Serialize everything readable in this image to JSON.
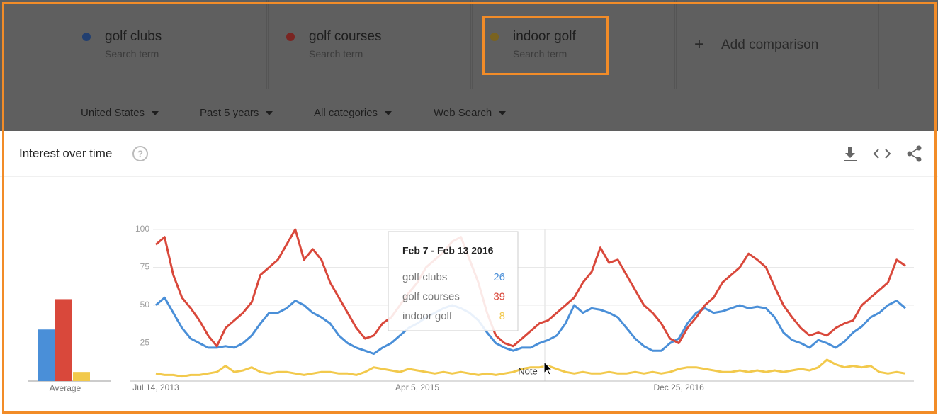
{
  "header": {
    "terms": [
      {
        "label": "golf clubs",
        "sub": "Search term"
      },
      {
        "label": "golf courses",
        "sub": "Search term"
      },
      {
        "label": "indoor golf",
        "sub": "Search term"
      }
    ],
    "add": "Add comparison",
    "filters": [
      "United States",
      "Past 5 years",
      "All categories",
      "Web Search"
    ]
  },
  "panel": {
    "title": "Interest over time"
  },
  "chart_data": {
    "type": "line",
    "categories": [
      "Jul 14, 2013",
      null,
      null,
      null,
      null,
      null,
      null,
      null,
      null,
      null,
      null,
      null,
      null,
      null,
      null,
      null,
      null,
      null,
      null,
      null,
      null,
      null,
      null,
      null,
      null,
      null,
      null,
      null,
      null,
      null,
      "Apr 5, 2015",
      null,
      null,
      null,
      null,
      null,
      null,
      null,
      null,
      null,
      null,
      null,
      null,
      null,
      null,
      null,
      null,
      null,
      null,
      null,
      null,
      null,
      null,
      null,
      null,
      null,
      null,
      null,
      null,
      null,
      "Dec 25, 2016",
      null,
      null,
      null,
      null,
      null,
      null,
      null,
      null,
      null,
      null,
      null,
      null,
      null,
      null,
      null,
      null,
      null,
      null,
      null,
      null,
      null,
      null,
      null,
      null,
      null,
      null
    ],
    "series": [
      {
        "name": "golf clubs",
        "color": "#4a8fd8",
        "values": [
          50,
          55,
          45,
          35,
          28,
          25,
          22,
          22,
          23,
          22,
          25,
          30,
          38,
          45,
          45,
          48,
          53,
          50,
          45,
          42,
          38,
          30,
          25,
          22,
          20,
          18,
          22,
          25,
          30,
          35,
          38,
          42,
          45,
          48,
          50,
          48,
          45,
          40,
          32,
          25,
          22,
          20,
          22,
          22,
          25,
          27,
          30,
          38,
          50,
          45,
          48,
          47,
          45,
          42,
          35,
          28,
          23,
          20,
          20,
          25,
          28,
          38,
          45,
          48,
          45,
          46,
          48,
          50,
          48,
          49,
          48,
          42,
          32,
          27,
          25,
          22,
          27,
          25,
          22,
          26,
          32,
          36,
          42,
          45,
          50,
          53,
          48
        ]
      },
      {
        "name": "golf courses",
        "color": "#d9483b",
        "values": [
          90,
          95,
          70,
          55,
          48,
          40,
          30,
          23,
          35,
          40,
          45,
          52,
          70,
          75,
          80,
          90,
          100,
          80,
          87,
          80,
          65,
          55,
          45,
          35,
          28,
          30,
          38,
          42,
          50,
          58,
          65,
          75,
          80,
          85,
          92,
          95,
          80,
          65,
          45,
          30,
          25,
          23,
          28,
          33,
          38,
          40,
          45,
          50,
          55,
          65,
          72,
          88,
          78,
          80,
          70,
          60,
          50,
          45,
          38,
          28,
          25,
          35,
          42,
          50,
          55,
          65,
          70,
          75,
          84,
          80,
          75,
          62,
          50,
          42,
          35,
          30,
          32,
          30,
          35,
          38,
          40,
          50,
          55,
          60,
          65,
          80,
          76
        ]
      },
      {
        "name": "indoor golf",
        "color": "#f2c94c",
        "values": [
          5,
          4,
          4,
          3,
          4,
          4,
          5,
          6,
          10,
          6,
          7,
          9,
          6,
          5,
          6,
          6,
          5,
          4,
          5,
          6,
          6,
          5,
          5,
          4,
          6,
          9,
          8,
          7,
          6,
          8,
          7,
          6,
          5,
          6,
          5,
          6,
          5,
          4,
          5,
          4,
          5,
          6,
          8,
          9,
          9,
          10,
          8,
          6,
          5,
          6,
          5,
          5,
          6,
          5,
          5,
          6,
          5,
          6,
          5,
          6,
          8,
          9,
          9,
          8,
          7,
          6,
          6,
          7,
          6,
          7,
          6,
          7,
          6,
          7,
          8,
          7,
          9,
          14,
          11,
          9,
          10,
          9,
          10,
          6,
          5,
          6,
          5
        ]
      }
    ],
    "ylim": [
      0,
      100
    ],
    "yticks": [
      25,
      50,
      75,
      100
    ],
    "grid": true,
    "average": {
      "label": "Average",
      "values": [
        34,
        54,
        6
      ]
    },
    "tooltip": {
      "title": "Feb 7 - Feb 13 2016",
      "values": [
        26,
        39,
        8
      ]
    },
    "annotation": "Note"
  }
}
